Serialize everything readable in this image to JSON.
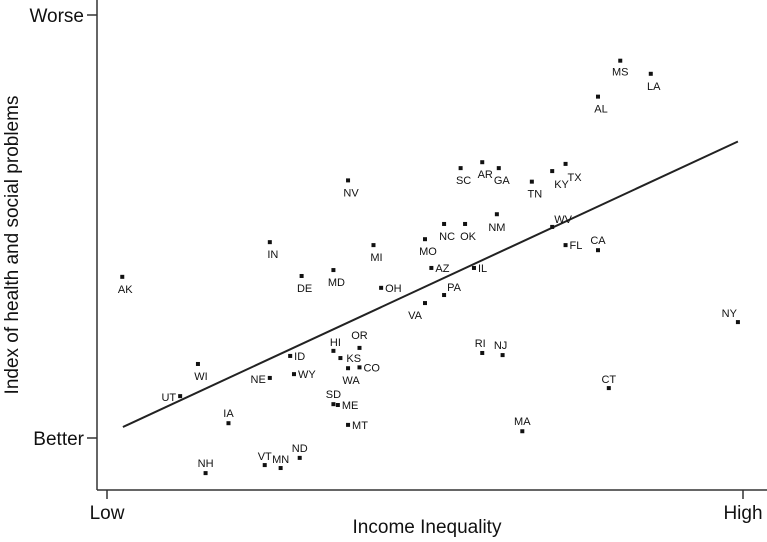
{
  "chart_data": {
    "type": "scatter",
    "title": "",
    "xlabel": "Income Inequality",
    "ylabel": "Index of health and social problems",
    "x_ticks": [
      {
        "value": 0,
        "label": "Low"
      },
      {
        "value": 100,
        "label": "High"
      }
    ],
    "y_ticks": [
      {
        "value": 0,
        "label": "Better"
      },
      {
        "value": 100,
        "label": "Worse"
      }
    ],
    "xlim": [
      0,
      100
    ],
    "ylim": [
      -9,
      100
    ],
    "grid": false,
    "legend": "none",
    "trendline": {
      "x": [
        2.5,
        99.2
      ],
      "y": [
        2.6,
        70.1
      ]
    },
    "points": [
      {
        "label": "AK",
        "x": 2.4,
        "y": 38.1
      },
      {
        "label": "UT",
        "x": 11.5,
        "y": 9.9
      },
      {
        "label": "WI",
        "x": 14.3,
        "y": 17.5
      },
      {
        "label": "NH",
        "x": 15.5,
        "y": -8.3
      },
      {
        "label": "IA",
        "x": 19.1,
        "y": 3.5
      },
      {
        "label": "IN",
        "x": 25.6,
        "y": 46.3
      },
      {
        "label": "NE",
        "x": 25.6,
        "y": 14.2
      },
      {
        "label": "VT",
        "x": 24.8,
        "y": -6.4
      },
      {
        "label": "MN",
        "x": 27.3,
        "y": -7.1
      },
      {
        "label": "ID",
        "x": 28.8,
        "y": 19.4
      },
      {
        "label": "WY",
        "x": 29.4,
        "y": 15.1
      },
      {
        "label": "ND",
        "x": 30.3,
        "y": -4.7
      },
      {
        "label": "DE",
        "x": 30.6,
        "y": 38.3
      },
      {
        "label": "MD",
        "x": 35.6,
        "y": 39.7
      },
      {
        "label": "HI",
        "x": 35.6,
        "y": 20.6
      },
      {
        "label": "SD",
        "x": 35.6,
        "y": 8.0
      },
      {
        "label": "KS",
        "x": 36.7,
        "y": 18.9
      },
      {
        "label": "ME",
        "x": 36.3,
        "y": 7.8
      },
      {
        "label": "NV",
        "x": 37.9,
        "y": 60.9
      },
      {
        "label": "WA",
        "x": 37.9,
        "y": 16.5
      },
      {
        "label": "MT",
        "x": 37.9,
        "y": 3.1
      },
      {
        "label": "MI",
        "x": 41.9,
        "y": 45.6
      },
      {
        "label": "OR",
        "x": 39.7,
        "y": 21.3
      },
      {
        "label": "CO",
        "x": 39.7,
        "y": 16.7
      },
      {
        "label": "OH",
        "x": 43.1,
        "y": 35.5
      },
      {
        "label": "MO",
        "x": 50.0,
        "y": 47.0
      },
      {
        "label": "VA",
        "x": 50.0,
        "y": 31.9
      },
      {
        "label": "AZ",
        "x": 51.0,
        "y": 40.2
      },
      {
        "label": "NC",
        "x": 53.0,
        "y": 50.6
      },
      {
        "label": "PA",
        "x": 53.0,
        "y": 33.8
      },
      {
        "label": "SC",
        "x": 55.6,
        "y": 63.8
      },
      {
        "label": "OK",
        "x": 56.3,
        "y": 50.6
      },
      {
        "label": "IL",
        "x": 57.7,
        "y": 40.2
      },
      {
        "label": "AR",
        "x": 59.0,
        "y": 65.2
      },
      {
        "label": "RI",
        "x": 59.0,
        "y": 20.1
      },
      {
        "label": "GA",
        "x": 61.6,
        "y": 63.8
      },
      {
        "label": "NM",
        "x": 61.3,
        "y": 52.9
      },
      {
        "label": "NJ",
        "x": 62.2,
        "y": 19.6
      },
      {
        "label": "TN",
        "x": 66.8,
        "y": 60.6
      },
      {
        "label": "MA",
        "x": 65.3,
        "y": 1.6
      },
      {
        "label": "KY",
        "x": 70.0,
        "y": 63.1
      },
      {
        "label": "WV",
        "x": 70.0,
        "y": 49.9
      },
      {
        "label": "TX",
        "x": 72.1,
        "y": 64.8
      },
      {
        "label": "FL",
        "x": 72.1,
        "y": 45.6
      },
      {
        "label": "CA",
        "x": 77.2,
        "y": 44.4
      },
      {
        "label": "AL",
        "x": 77.2,
        "y": 80.7
      },
      {
        "label": "CT",
        "x": 78.9,
        "y": 11.8
      },
      {
        "label": "MS",
        "x": 80.7,
        "y": 89.2
      },
      {
        "label": "LA",
        "x": 85.5,
        "y": 86.1
      },
      {
        "label": "NY",
        "x": 99.2,
        "y": 27.4
      }
    ]
  }
}
